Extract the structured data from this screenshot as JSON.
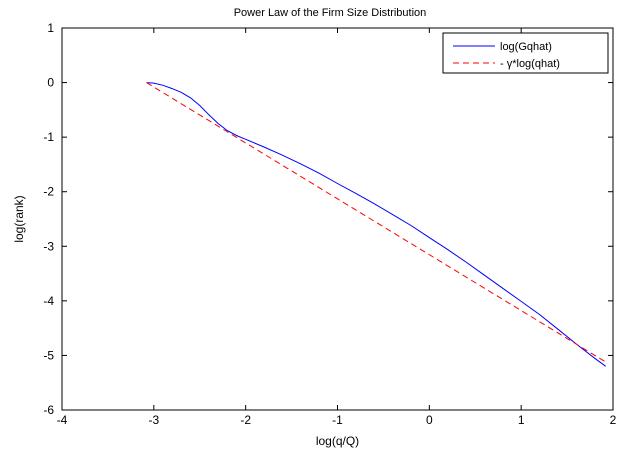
{
  "chart_data": {
    "type": "line",
    "title": "Power Law of the Firm Size Distribution",
    "xlabel": "log(q/Q)",
    "ylabel": "log(rank)",
    "xlim": [
      -4,
      2
    ],
    "ylim": [
      -6,
      1
    ],
    "xticks": [
      -4,
      -3,
      -2,
      -1,
      0,
      1,
      2
    ],
    "yticks": [
      1,
      0,
      -1,
      -2,
      -3,
      -4,
      -5,
      -6
    ],
    "grid": false,
    "legend_position": "top-right",
    "series": [
      {
        "name": "log(Gqhat)",
        "color": "#0000ff",
        "style": "solid",
        "x": [
          -3.08,
          -3.0,
          -2.9,
          -2.8,
          -2.7,
          -2.6,
          -2.5,
          -2.4,
          -2.3,
          -2.2,
          -2.1,
          -2.0,
          -1.8,
          -1.6,
          -1.4,
          -1.2,
          -1.0,
          -0.8,
          -0.6,
          -0.4,
          -0.2,
          0.0,
          0.2,
          0.4,
          0.6,
          0.8,
          1.0,
          1.2,
          1.4,
          1.6,
          1.8,
          1.92
        ],
        "y": [
          0.0,
          -0.01,
          -0.05,
          -0.11,
          -0.18,
          -0.28,
          -0.42,
          -0.59,
          -0.75,
          -0.88,
          -0.97,
          -1.04,
          -1.18,
          -1.33,
          -1.49,
          -1.66,
          -1.85,
          -2.03,
          -2.22,
          -2.42,
          -2.62,
          -2.84,
          -3.06,
          -3.29,
          -3.53,
          -3.77,
          -4.01,
          -4.25,
          -4.52,
          -4.79,
          -5.05,
          -5.2
        ]
      },
      {
        "name": "- γ*log(qhat)",
        "color": "#ff0000",
        "style": "dashed",
        "x": [
          -3.08,
          1.92
        ],
        "y": [
          0.0,
          -5.12
        ]
      }
    ]
  }
}
